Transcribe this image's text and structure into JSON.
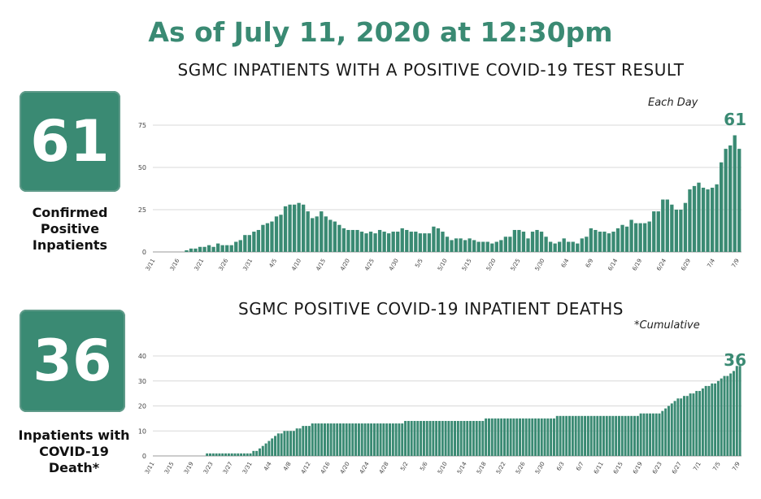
{
  "headline": "As of July 11, 2020 at 12:30pm",
  "colors": {
    "accent": "#3a8a73",
    "bar": "#3a8a73"
  },
  "panels": [
    {
      "big_number": "61",
      "label_lines": [
        "Confirmed",
        "Positive",
        "Inpatients"
      ]
    },
    {
      "big_number": "36",
      "label_lines": [
        "Inpatients with",
        "COVID-19",
        "Death*"
      ]
    }
  ],
  "chart_data": [
    {
      "type": "bar",
      "title": "SGMC INPATIENTS WITH A POSITIVE COVID-19 TEST RESULT",
      "note": "Each Day",
      "end_label": "61",
      "ylim": [
        0,
        75
      ],
      "yticks": [
        "0",
        "25",
        "50",
        "75"
      ],
      "grid": true,
      "tick_labels": [
        "3/11",
        "3/16",
        "3/21",
        "3/26",
        "3/31",
        "4/5",
        "4/10",
        "4/15",
        "4/20",
        "4/25",
        "4/30",
        "5/5",
        "5/10",
        "5/15",
        "5/20",
        "5/25",
        "5/30",
        "6/4",
        "6/9",
        "6/14",
        "6/19",
        "6/24",
        "6/29",
        "7/4",
        "7/9"
      ],
      "values": [
        0,
        0,
        0,
        0,
        0,
        0,
        0,
        1,
        2,
        2,
        3,
        3,
        4,
        3,
        5,
        4,
        4,
        4,
        6,
        7,
        10,
        10,
        12,
        13,
        16,
        17,
        18,
        21,
        22,
        27,
        28,
        28,
        29,
        28,
        24,
        20,
        21,
        24,
        21,
        19,
        18,
        16,
        14,
        13,
        13,
        13,
        12,
        11,
        12,
        11,
        13,
        12,
        11,
        12,
        12,
        14,
        13,
        12,
        12,
        11,
        11,
        11,
        15,
        14,
        12,
        9,
        7,
        8,
        8,
        7,
        8,
        7,
        6,
        6,
        6,
        5,
        6,
        7,
        9,
        9,
        13,
        13,
        12,
        8,
        12,
        13,
        12,
        9,
        6,
        5,
        6,
        8,
        6,
        6,
        5,
        8,
        9,
        14,
        13,
        12,
        12,
        11,
        12,
        14,
        16,
        15,
        19,
        17,
        17,
        17,
        18,
        24,
        24,
        31,
        31,
        28,
        25,
        25,
        29,
        37,
        39,
        41,
        38,
        37,
        38,
        40,
        53,
        61,
        63,
        69,
        61
      ]
    },
    {
      "type": "bar",
      "title": "SGMC POSITIVE COVID-19 INPATIENT DEATHS",
      "note": "*Cumulative",
      "end_label": "36",
      "ylim": [
        0,
        40
      ],
      "yticks": [
        "0",
        "10",
        "20",
        "30",
        "40"
      ],
      "grid": true,
      "tick_labels": [
        "3/11",
        "3/15",
        "3/19",
        "3/23",
        "3/27",
        "3/31",
        "4/4",
        "4/8",
        "4/12",
        "4/16",
        "4/20",
        "4/24",
        "4/28",
        "5/2",
        "5/6",
        "5/10",
        "5/14",
        "5/18",
        "5/22",
        "5/26",
        "5/30",
        "6/3",
        "6/7",
        "6/11",
        "6/15",
        "6/19",
        "6/23",
        "6/27",
        "7/1",
        "7/5",
        "7/9"
      ],
      "values": [
        0,
        0,
        0,
        0,
        0,
        0,
        0,
        0,
        0,
        0,
        0,
        0,
        0,
        0,
        0,
        0,
        0,
        1,
        1,
        1,
        1,
        1,
        1,
        1,
        1,
        1,
        1,
        1,
        1,
        1,
        1,
        1,
        2,
        2,
        3,
        4,
        5,
        6,
        7,
        8,
        9,
        9,
        10,
        10,
        10,
        10,
        11,
        11,
        12,
        12,
        12,
        13,
        13,
        13,
        13,
        13,
        13,
        13,
        13,
        13,
        13,
        13,
        13,
        13,
        13,
        13,
        13,
        13,
        13,
        13,
        13,
        13,
        13,
        13,
        13,
        13,
        13,
        13,
        13,
        13,
        13,
        14,
        14,
        14,
        14,
        14,
        14,
        14,
        14,
        14,
        14,
        14,
        14,
        14,
        14,
        14,
        14,
        14,
        14,
        14,
        14,
        14,
        14,
        14,
        14,
        14,
        14,
        15,
        15,
        15,
        15,
        15,
        15,
        15,
        15,
        15,
        15,
        15,
        15,
        15,
        15,
        15,
        15,
        15,
        15,
        15,
        15,
        15,
        15,
        15,
        16,
        16,
        16,
        16,
        16,
        16,
        16,
        16,
        16,
        16,
        16,
        16,
        16,
        16,
        16,
        16,
        16,
        16,
        16,
        16,
        16,
        16,
        16,
        16,
        16,
        16,
        16,
        17,
        17,
        17,
        17,
        17,
        17,
        17,
        18,
        19,
        20,
        21,
        22,
        23,
        23,
        24,
        24,
        25,
        25,
        26,
        26,
        27,
        28,
        28,
        29,
        29,
        30,
        31,
        32,
        32,
        33,
        34,
        36,
        36
      ]
    }
  ]
}
